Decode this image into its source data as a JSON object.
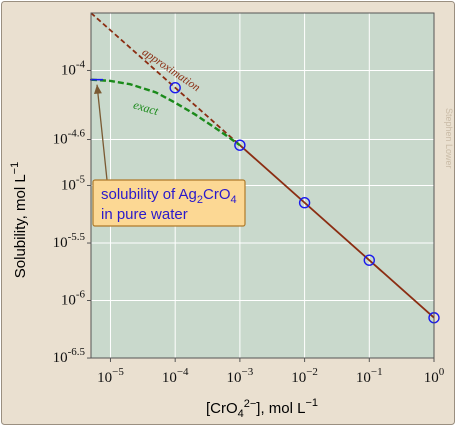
{
  "chart_data": {
    "type": "line",
    "xscale": "log",
    "yscale": "log",
    "xlim": [
      5e-06,
      1
    ],
    "ylim": [
      3.1623e-07,
      0.000316
    ],
    "xlabel": {
      "base": "[CrO",
      "sub": "4",
      "sup": "2−",
      "rest": "], mol L",
      "exp": "−1"
    },
    "ylabel": {
      "base": "Solubility, mol L",
      "exp": "−1"
    },
    "grid": true,
    "colors": {
      "outer_bg": "#eae0d0",
      "plot_bg": "#c9d9cc",
      "grid": "#ffffff",
      "approximation": "#8b2d12",
      "exact": "#1a8a1a",
      "markers": "#1a1aee",
      "callout_fill": "#fcd894",
      "callout_border": "#b07a2a",
      "callout_text": "#2a1acc",
      "arrow": "#7a5a33"
    },
    "x_ticks": [
      {
        "value": 1e-05,
        "base": "10",
        "exp": "−5"
      },
      {
        "value": 0.0001,
        "base": "10",
        "exp": "−4"
      },
      {
        "value": 0.001,
        "base": "10",
        "exp": "−3"
      },
      {
        "value": 0.01,
        "base": "10",
        "exp": "−2"
      },
      {
        "value": 0.1,
        "base": "10",
        "exp": "−1"
      },
      {
        "value": 1,
        "base": "10",
        "exp": "0"
      }
    ],
    "y_ticks": [
      {
        "value": 0.0001,
        "base": "10",
        "exp": "-4"
      },
      {
        "value": 2.51e-05,
        "base": "10",
        "exp": "-4.6"
      },
      {
        "value": 1e-05,
        "base": "10",
        "exp": "-5"
      },
      {
        "value": 3.16e-06,
        "base": "10",
        "exp": "-5.5"
      },
      {
        "value": 1e-06,
        "base": "10",
        "exp": "-6"
      },
      {
        "value": 3.16e-07,
        "base": "10",
        "exp": "-6.5"
      }
    ],
    "series": [
      {
        "name": "approximation",
        "style": "dashed",
        "x": [
          5e-06,
          0.0001,
          0.001
        ],
        "y": [
          0.000316,
          7.08e-05,
          2.24e-05
        ]
      },
      {
        "name": "exact",
        "style": "dashed",
        "x": [
          5e-06,
          1e-05,
          2e-05,
          5e-05,
          0.0001,
          0.0002,
          0.0005,
          0.001
        ],
        "y": [
          8.32e-05,
          8.11e-05,
          7.59e-05,
          6.46e-05,
          5.25e-05,
          4.17e-05,
          2.95e-05,
          2.24e-05
        ]
      },
      {
        "name": "",
        "style": "solid",
        "x": [
          0.001,
          1
        ],
        "y": [
          2.24e-05,
          7.08e-07
        ]
      }
    ],
    "markers": {
      "x": [
        0.0001,
        0.001,
        0.01,
        0.1,
        1
      ],
      "y": [
        7.08e-05,
        2.24e-05,
        7.08e-06,
        2.24e-06,
        7.08e-07
      ]
    },
    "pure_water_point": {
      "x": 5e-06,
      "y": 8.32e-05
    },
    "annotations": {
      "approximation": "approximation",
      "exact": "exact",
      "callout_line1": "solubility of Ag",
      "callout_sub1": "2",
      "callout_mid": "CrO",
      "callout_sub2": "4",
      "callout_line2": "in pure water",
      "credit": "Stephen Lower"
    }
  }
}
